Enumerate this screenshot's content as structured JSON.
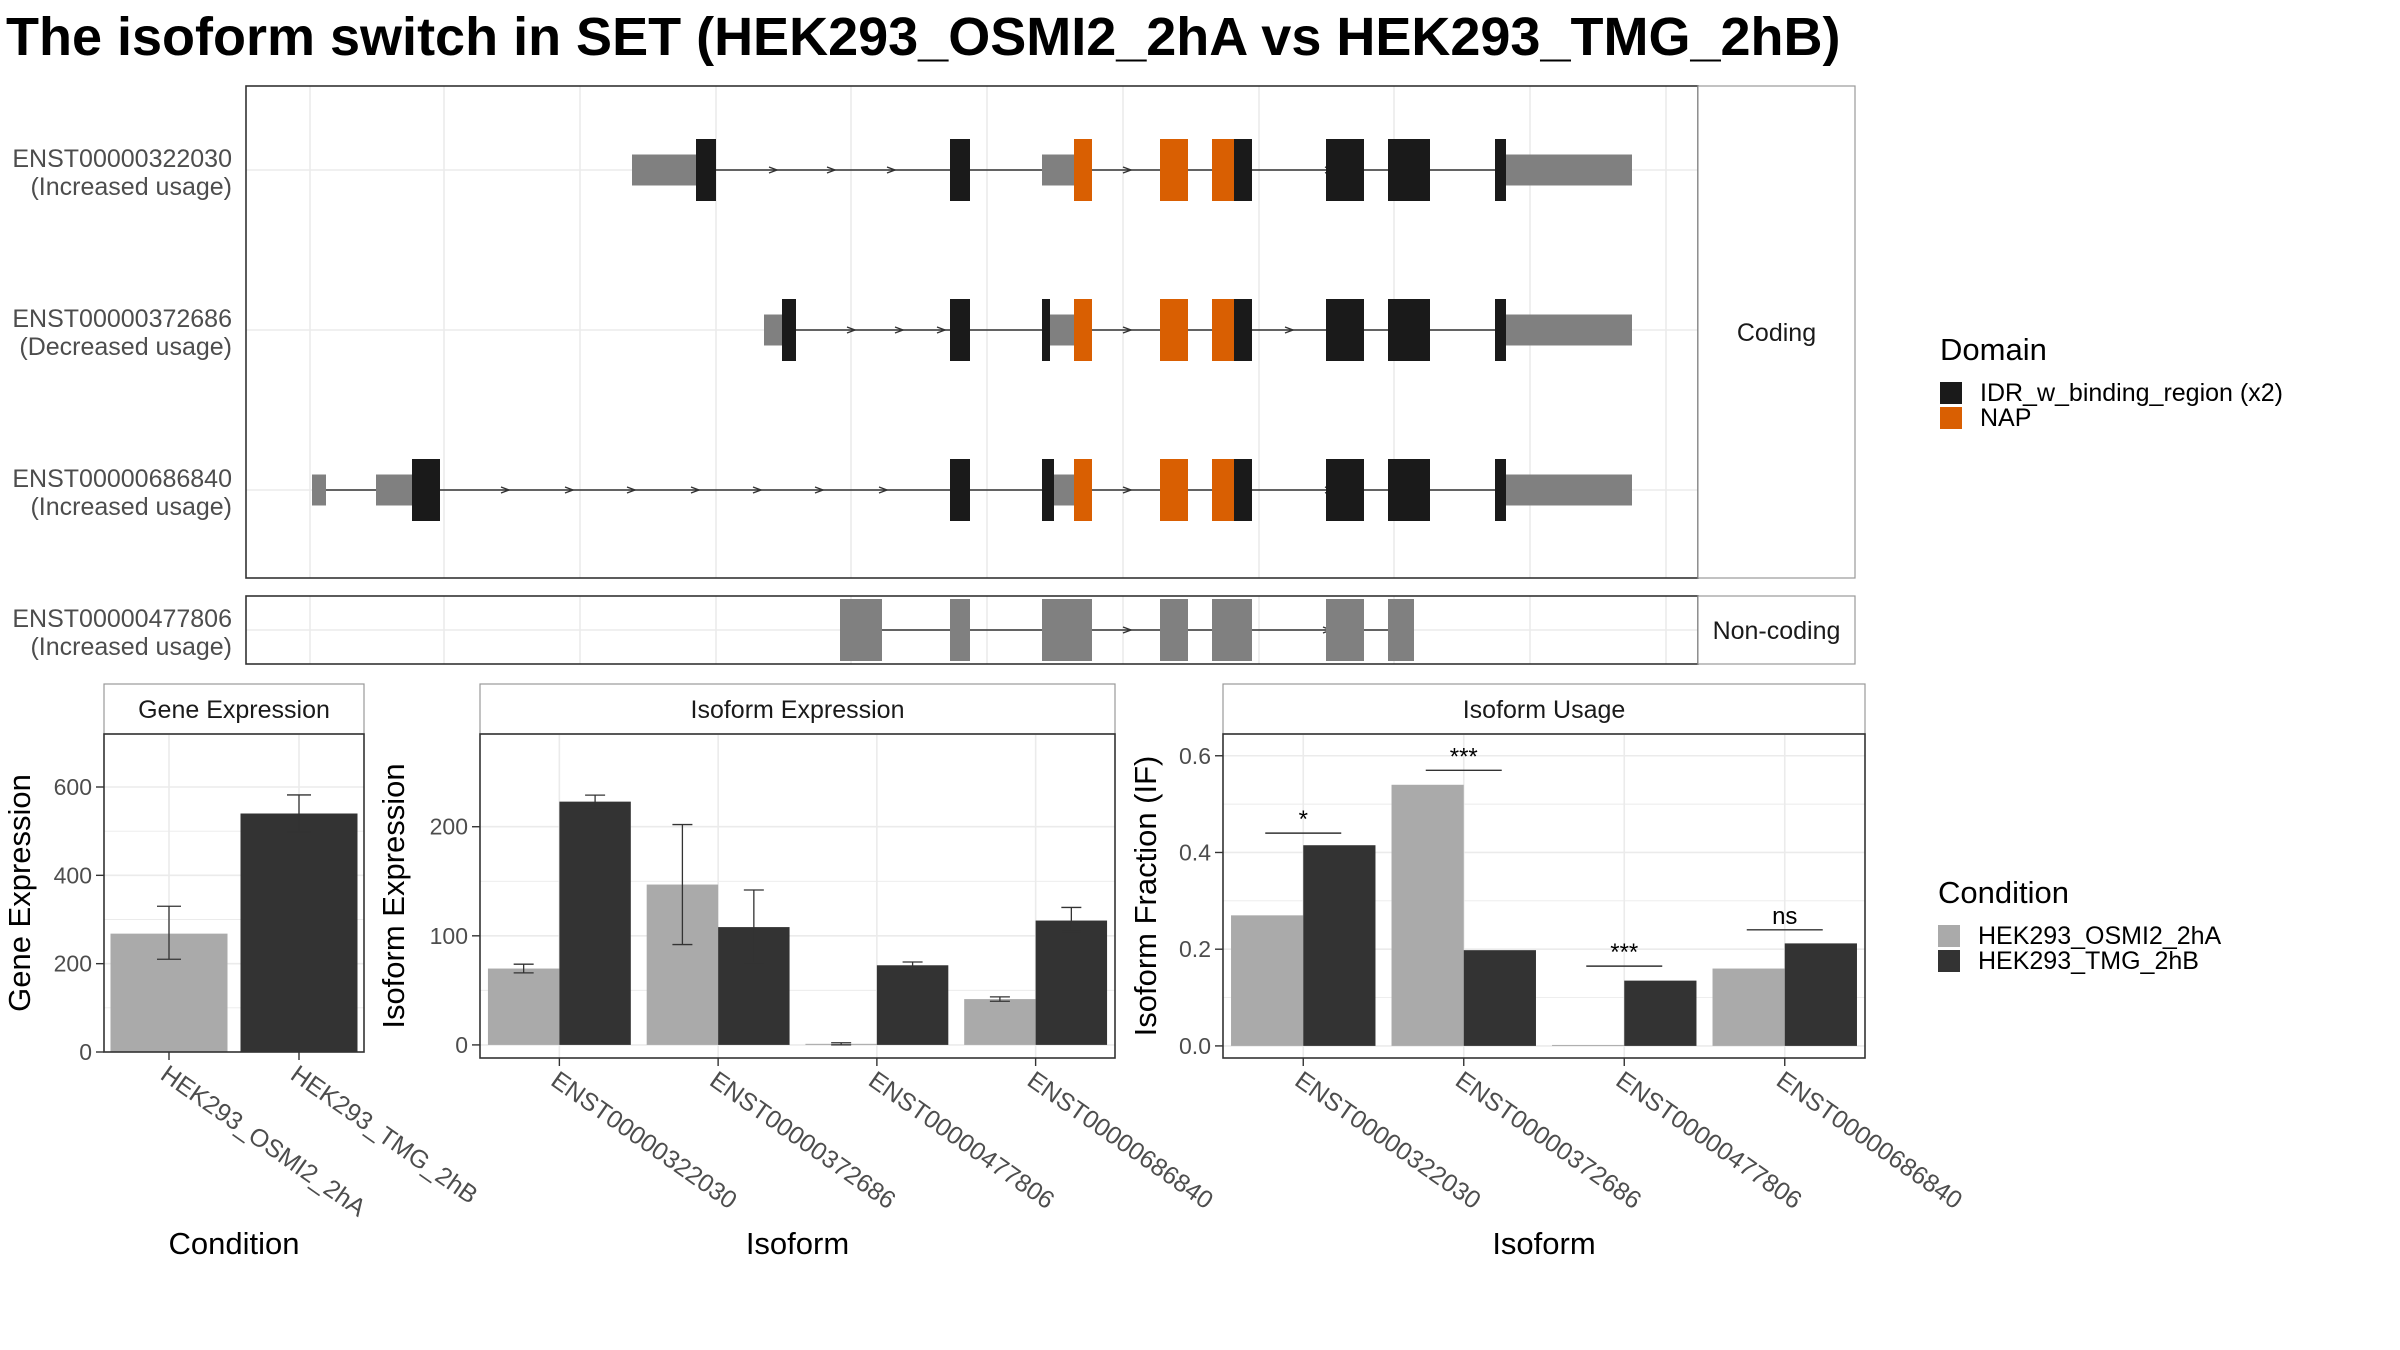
{
  "title": "The isoform switch in SET (HEK293_OSMI2_2hA vs HEK293_TMG_2hB)",
  "colors": {
    "utr": "#808080",
    "cds": "#1a1a1a",
    "nap": "#d95f02",
    "cond_a": "#aaaaaa",
    "cond_b": "#333333",
    "grid": "#ebebeb"
  },
  "structure": {
    "strips": {
      "coding": "Coding",
      "noncoding": "Non-coding"
    },
    "coding_isoforms": [
      {
        "id": "ENST00000322030",
        "usage": "(Increased usage)"
      },
      {
        "id": "ENST00000372686",
        "usage": "(Decreased usage)"
      },
      {
        "id": "ENST00000686840",
        "usage": "(Increased usage)"
      }
    ],
    "noncoding_isoforms": [
      {
        "id": "ENST00000477806",
        "usage": "(Increased usage)"
      }
    ]
  },
  "domain_legend": {
    "title": "Domain",
    "items": [
      {
        "label": "IDR_w_binding_region (x2)",
        "color": "#1a1a1a"
      },
      {
        "label": "NAP",
        "color": "#d95f02"
      }
    ]
  },
  "condition_legend": {
    "title": "Condition",
    "items": [
      {
        "label": "HEK293_OSMI2_2hA",
        "color": "#aaaaaa"
      },
      {
        "label": "HEK293_TMG_2hB",
        "color": "#333333"
      }
    ]
  },
  "chart_data": [
    {
      "type": "bar",
      "title": "Gene Expression",
      "xlabel": "Condition",
      "ylabel": "Gene Expression",
      "ylim": [
        0,
        720
      ],
      "yticks": [
        0,
        200,
        400,
        600
      ],
      "categories": [
        "HEK293_OSMI2_2hA",
        "HEK293_TMG_2hB"
      ],
      "values": [
        268,
        540
      ],
      "errors": [
        [
          210,
          330
        ],
        [
          498,
          582
        ]
      ]
    },
    {
      "type": "bar",
      "title": "Isoform Expression",
      "xlabel": "Isoform",
      "ylabel": "Isoform Expression",
      "ylim": [
        -12,
        285
      ],
      "yticks": [
        0,
        100,
        200
      ],
      "categories": [
        "ENST00000322030",
        "ENST00000372686",
        "ENST00000477806",
        "ENST00000686840"
      ],
      "series": [
        {
          "name": "HEK293_OSMI2_2hA",
          "values": [
            70,
            147,
            1,
            42
          ],
          "errors": [
            [
              66,
              74
            ],
            [
              92,
              202
            ],
            [
              0,
              2
            ],
            [
              40,
              44
            ]
          ]
        },
        {
          "name": "HEK293_TMG_2hB",
          "values": [
            223,
            108,
            73,
            114
          ],
          "errors": [
            [
              217,
              229
            ],
            [
              75,
              142
            ],
            [
              70,
              76
            ],
            [
              104,
              126
            ]
          ]
        }
      ]
    },
    {
      "type": "bar",
      "title": "Isoform Usage",
      "xlabel": "Isoform",
      "ylabel": "Isoform Fraction (IF)",
      "ylim": [
        -0.025,
        0.645
      ],
      "yticks": [
        0.0,
        0.2,
        0.4,
        0.6
      ],
      "ytick_labels": [
        "0.0",
        "0.2",
        "0.4",
        "0.6"
      ],
      "categories": [
        "ENST00000322030",
        "ENST00000372686",
        "ENST00000477806",
        "ENST00000686840"
      ],
      "series": [
        {
          "name": "HEK293_OSMI2_2hA",
          "values": [
            0.27,
            0.54,
            0.002,
            0.16
          ]
        },
        {
          "name": "HEK293_TMG_2hB",
          "values": [
            0.415,
            0.198,
            0.135,
            0.212
          ]
        }
      ],
      "significance": [
        "*",
        "***",
        "***",
        "ns"
      ],
      "significance_y": [
        0.44,
        0.57,
        0.165,
        0.24
      ]
    }
  ]
}
